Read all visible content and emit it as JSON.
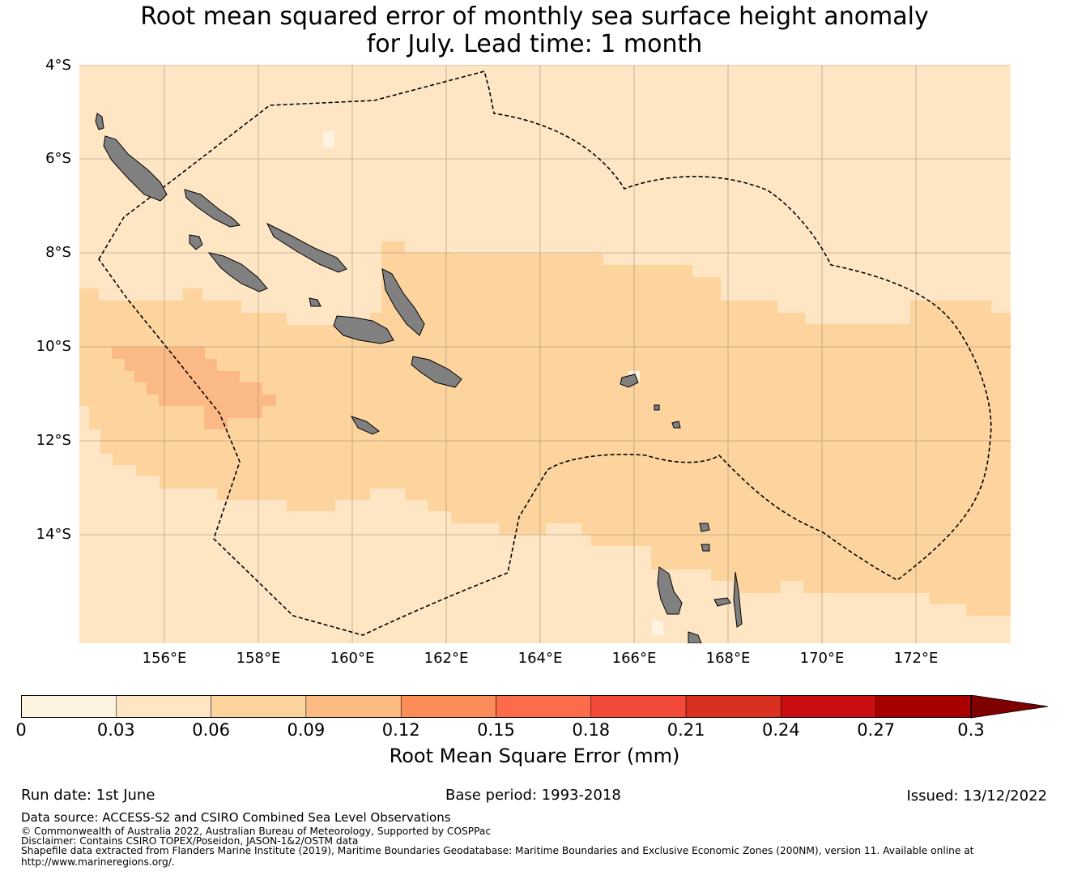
{
  "title": {
    "line1": "Root mean squared error of monthly sea surface height anomaly",
    "line2": "for July. Lead time: 1 month"
  },
  "map": {
    "lat_labels": [
      "4°S",
      "6°S",
      "8°S",
      "10°S",
      "12°S",
      "14°S"
    ],
    "lon_labels": [
      "156°E",
      "158°E",
      "160°E",
      "162°E",
      "164°E",
      "166°E",
      "168°E",
      "170°E",
      "172°E"
    ],
    "extent": {
      "lon_min": 154.2,
      "lon_max": 174.0,
      "lat_min": -16.3,
      "lat_max": -4.0
    },
    "land_color": "#808080",
    "grid_color": "#8a7a66"
  },
  "colorbar": {
    "label": "Root Mean Square Error (mm)",
    "ticks": [
      "0",
      "0.03",
      "0.06",
      "0.09",
      "0.12",
      "0.15",
      "0.18",
      "0.21",
      "0.24",
      "0.27",
      "0.3"
    ],
    "colors": [
      "#fff3e1",
      "#fee6c5",
      "#fdd49e",
      "#fdbb84",
      "#fc8d59",
      "#fc6c4a",
      "#f44a3a",
      "#d93020",
      "#c90d10",
      "#a80000",
      "#7f0000"
    ]
  },
  "footer": {
    "run_date": "Run date: 1st June",
    "base_period": "Base period: 1993-2018",
    "issued": "Issued: 13/12/2022",
    "data_source": "Data source: ACCESS-S2 and CSIRO Combined Sea Level Observations",
    "copyright": "© Commonwealth of Australia 2022, Australian Bureau of Meteorology, Supported by COSPPac",
    "disclaimer": "Disclaimer: Contains CSIRO TOPEX/Poseidon, JASON-1&2/OSTM data",
    "shapefile": "Shapefile data extracted from Flanders Marine Institute (2019), Maritime Boundaries Geodatabase: Maritime Boundaries and Exclusive Economic Zones (200NM), version 11. Available online at",
    "url": "http://www.marineregions.org/."
  }
}
